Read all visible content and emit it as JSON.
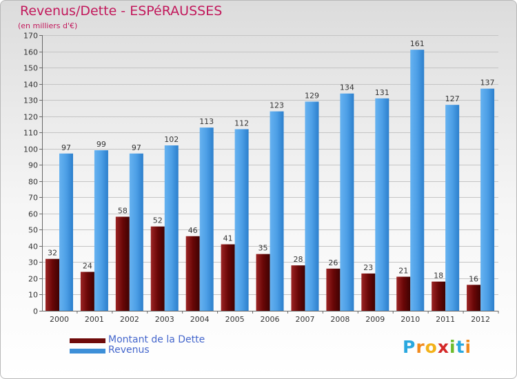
{
  "header": {
    "title": "Revenus/Dette - ESPéRAUSSES",
    "subtitle": "(en milliers d'€)"
  },
  "chart_data": {
    "type": "bar",
    "categories": [
      "2000",
      "2001",
      "2002",
      "2003",
      "2004",
      "2005",
      "2006",
      "2007",
      "2008",
      "2009",
      "2010",
      "2011",
      "2012"
    ],
    "series": [
      {
        "name": "Montant de la Dette",
        "color": "#7a0e0e",
        "values": [
          32,
          24,
          58,
          52,
          46,
          41,
          35,
          28,
          26,
          23,
          21,
          18,
          16
        ]
      },
      {
        "name": "Revenus",
        "color": "#4d9fe6",
        "values": [
          97,
          99,
          97,
          102,
          113,
          112,
          123,
          129,
          134,
          131,
          161,
          127,
          137
        ]
      }
    ],
    "ylim": [
      0,
      170
    ],
    "ytick_step": 10,
    "grid": true,
    "legend_position": "bottom-left",
    "title": "Revenus/Dette - ESPéRAUSSES",
    "ylabel": "(en milliers d'€)",
    "xlabel": ""
  },
  "legend": {
    "items": [
      {
        "label": "Montant de la Dette",
        "color": "#6e0a0a"
      },
      {
        "label": "Revenus",
        "color": "#3d8fd8"
      }
    ]
  },
  "logo": {
    "letters": [
      "P",
      "r",
      "o",
      "x",
      "i",
      "t",
      "i"
    ],
    "colors": [
      "#2aa8df",
      "#f18a1d",
      "#f3b21a",
      "#d42828",
      "#6dbb2d",
      "#2aa8df",
      "#f18a1d"
    ]
  }
}
